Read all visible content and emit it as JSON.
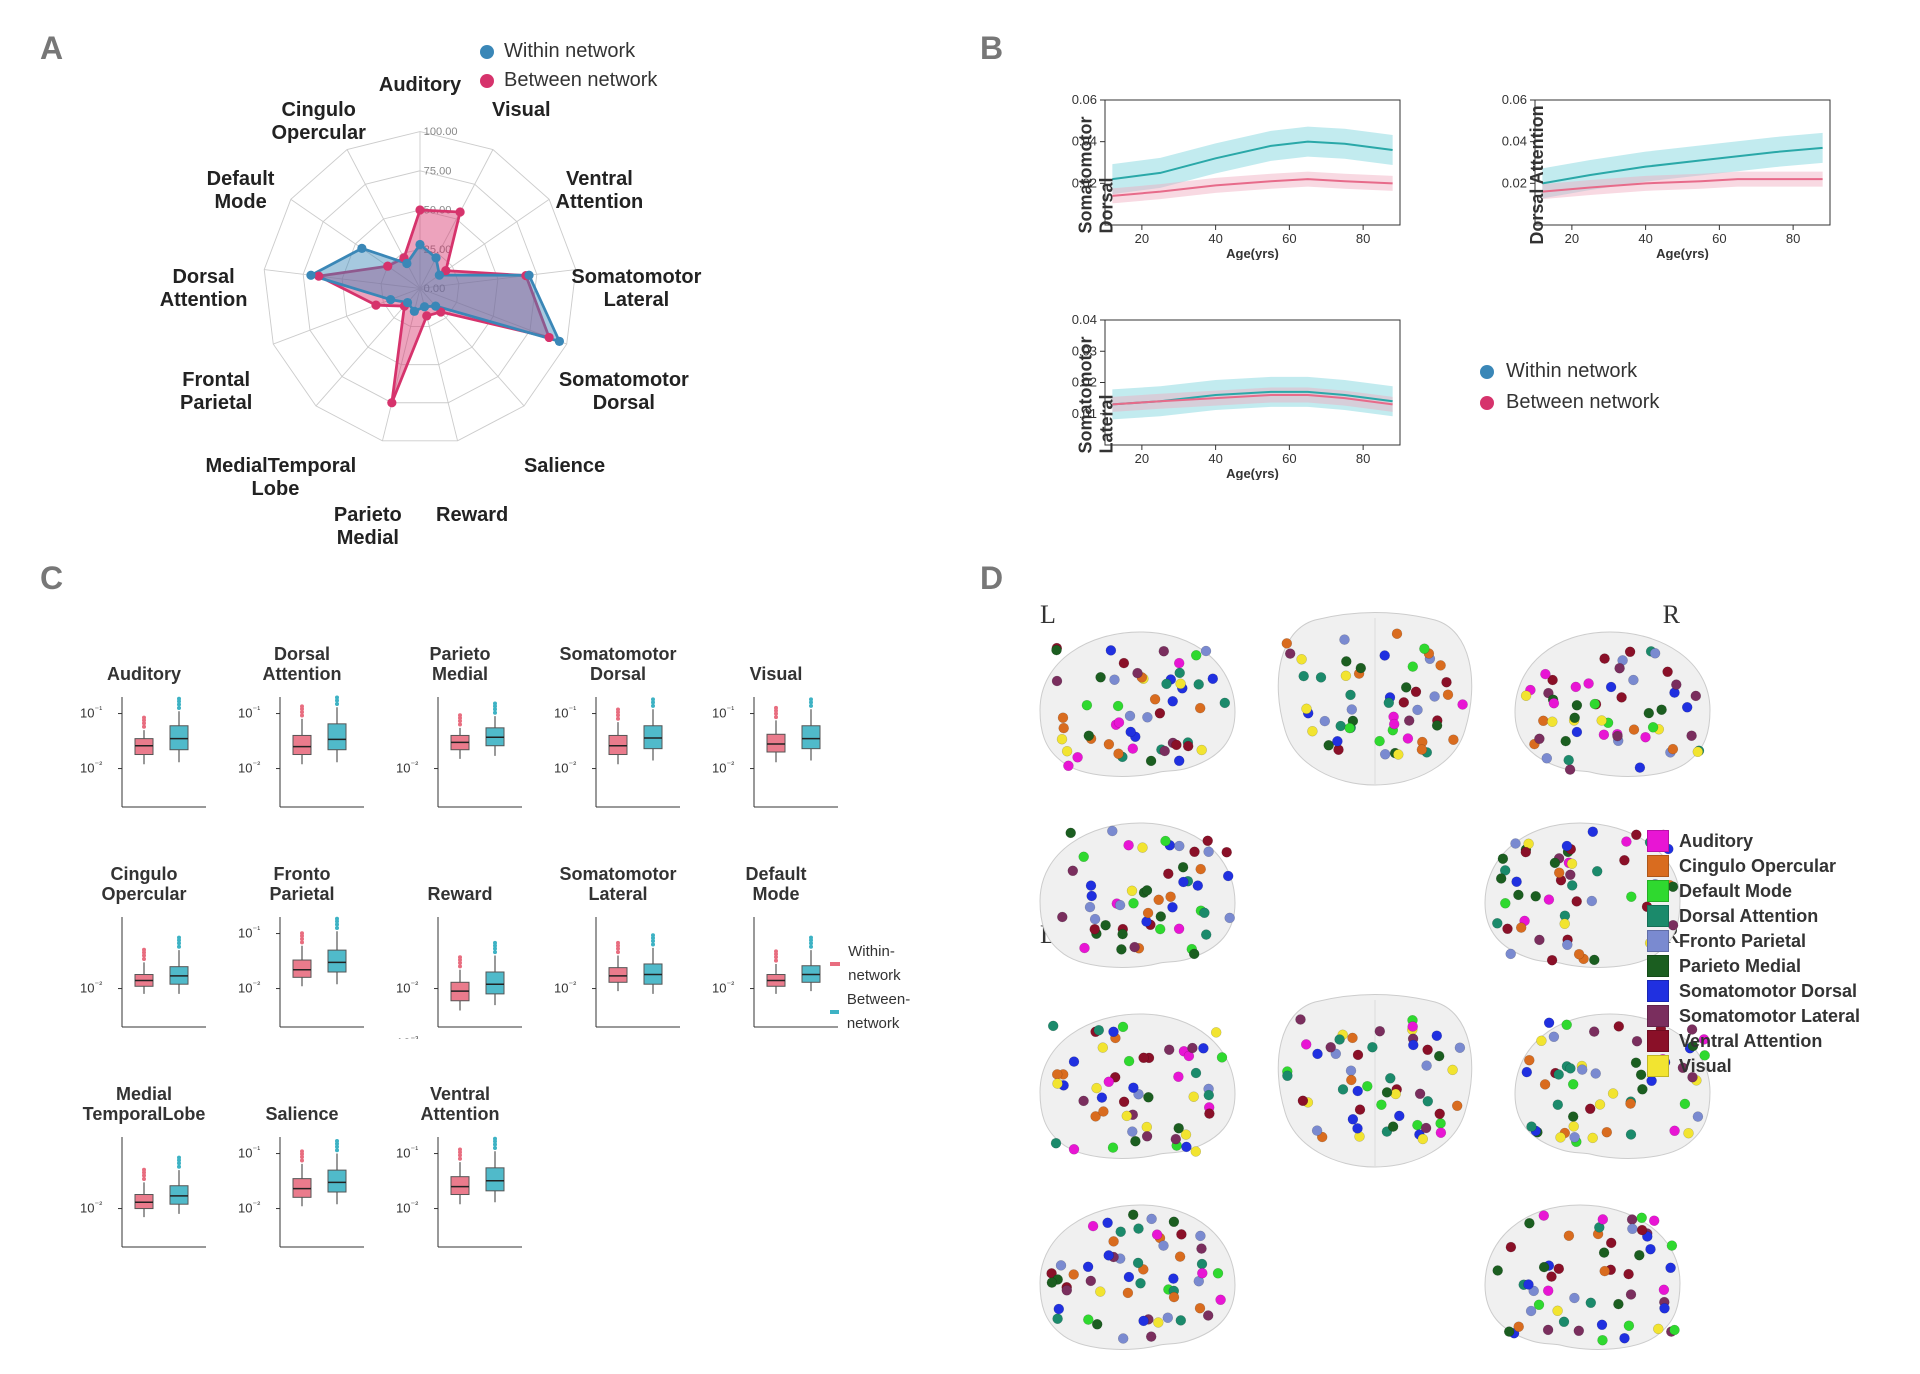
{
  "colors": {
    "within": "#3a87b7",
    "between": "#d6336c",
    "within_line": "#2aa8a8",
    "between_line": "#e76b8a",
    "within_fill": "rgba(120,210,220,0.45)",
    "between_fill": "rgba(240,170,190,0.45)",
    "box_within": "#e86d7f",
    "box_between": "#3db2c4",
    "grid": "#cccccc",
    "panel_label": "#777777"
  },
  "panelA": {
    "label": "A",
    "legend": {
      "within": "Within network",
      "between": "Between network"
    },
    "rings": [
      0,
      25,
      50,
      75,
      100
    ],
    "axes": [
      {
        "label": "Auditory",
        "within": 28,
        "between": 50
      },
      {
        "label": "Visual",
        "within": 22,
        "between": 55
      },
      {
        "label": "Ventral\nAttention",
        "within": 15,
        "between": 20
      },
      {
        "label": "Somatomotor\nLateral",
        "within": 70,
        "between": 68
      },
      {
        "label": "Somatomotor\nDorsal",
        "within": 95,
        "between": 88
      },
      {
        "label": "Salience",
        "within": 15,
        "between": 20
      },
      {
        "label": "Reward",
        "within": 12,
        "between": 18
      },
      {
        "label": "Parieto\nMedial",
        "within": 15,
        "between": 75
      },
      {
        "label": "MedialTemporal\nLobe",
        "within": 12,
        "between": 15
      },
      {
        "label": "Frontal\nParietal",
        "within": 20,
        "between": 30
      },
      {
        "label": "Dorsal\nAttention",
        "within": 70,
        "between": 65
      },
      {
        "label": "Default\nMode",
        "within": 45,
        "between": 25
      },
      {
        "label": "Cingulo\nOpercular",
        "within": 18,
        "between": 22
      }
    ]
  },
  "panelB": {
    "label": "B",
    "legend": {
      "within": "Within network",
      "between": "Between network"
    },
    "xlabel": "Age(yrs)",
    "xticks": [
      20,
      40,
      60,
      80
    ],
    "charts": [
      {
        "id": "sm_dorsal",
        "ylabel": "Somatomotor\nDorsal",
        "ylim": [
          0,
          0.06
        ],
        "yticks": [
          0.02,
          0.04,
          0.06
        ],
        "within": [
          [
            12,
            0.022
          ],
          [
            25,
            0.025
          ],
          [
            40,
            0.032
          ],
          [
            55,
            0.038
          ],
          [
            65,
            0.04
          ],
          [
            75,
            0.039
          ],
          [
            88,
            0.036
          ]
        ],
        "between": [
          [
            12,
            0.014
          ],
          [
            25,
            0.016
          ],
          [
            40,
            0.019
          ],
          [
            55,
            0.021
          ],
          [
            65,
            0.022
          ],
          [
            75,
            0.021
          ],
          [
            88,
            0.02
          ]
        ],
        "band": 0.006
      },
      {
        "id": "dorsal_attn",
        "ylabel": "Dorsal Attention",
        "ylim": [
          0,
          0.06
        ],
        "yticks": [
          0.02,
          0.04,
          0.06
        ],
        "within": [
          [
            12,
            0.02
          ],
          [
            25,
            0.024
          ],
          [
            40,
            0.028
          ],
          [
            55,
            0.031
          ],
          [
            65,
            0.033
          ],
          [
            75,
            0.035
          ],
          [
            88,
            0.037
          ]
        ],
        "between": [
          [
            12,
            0.016
          ],
          [
            25,
            0.018
          ],
          [
            40,
            0.02
          ],
          [
            55,
            0.021
          ],
          [
            65,
            0.022
          ],
          [
            75,
            0.022
          ],
          [
            88,
            0.022
          ]
        ],
        "band": 0.006
      },
      {
        "id": "sm_lateral",
        "ylabel": "Somatomotor\nLateral",
        "ylim": [
          0,
          0.04
        ],
        "yticks": [
          0.01,
          0.02,
          0.03,
          0.04
        ],
        "within": [
          [
            12,
            0.013
          ],
          [
            25,
            0.014
          ],
          [
            40,
            0.016
          ],
          [
            55,
            0.017
          ],
          [
            65,
            0.017
          ],
          [
            75,
            0.016
          ],
          [
            88,
            0.014
          ]
        ],
        "between": [
          [
            12,
            0.013
          ],
          [
            25,
            0.014
          ],
          [
            40,
            0.015
          ],
          [
            55,
            0.016
          ],
          [
            65,
            0.016
          ],
          [
            75,
            0.015
          ],
          [
            88,
            0.013
          ]
        ],
        "band": 0.004
      }
    ]
  },
  "panelC": {
    "label": "C",
    "legend": {
      "within": "Within-network",
      "between": "Between-network"
    },
    "ylabel_ticks": [
      "10",
      "10"
    ],
    "plots": [
      {
        "title": "Auditory",
        "yticks": [
          "10 ⁻¹",
          "10 ⁻²"
        ],
        "w": [
          0.012,
          0.018,
          0.026,
          0.035,
          0.05
        ],
        "b": [
          0.013,
          0.022,
          0.035,
          0.06,
          0.11
        ]
      },
      {
        "title": "Dorsal\nAttention",
        "yticks": [
          "10 ⁻¹",
          "10 ⁻²"
        ],
        "w": [
          0.012,
          0.018,
          0.025,
          0.04,
          0.08
        ],
        "b": [
          0.013,
          0.022,
          0.034,
          0.065,
          0.13
        ]
      },
      {
        "title": "Parieto\nMedial",
        "yticks": [
          "10 ⁻²"
        ],
        "w": [
          0.015,
          0.022,
          0.03,
          0.04,
          0.055
        ],
        "b": [
          0.017,
          0.026,
          0.037,
          0.055,
          0.09
        ]
      },
      {
        "title": "Somatomotor\nDorsal",
        "yticks": [
          "10 ⁻¹",
          "10 ⁻²"
        ],
        "w": [
          0.012,
          0.018,
          0.026,
          0.04,
          0.07
        ],
        "b": [
          0.014,
          0.023,
          0.036,
          0.06,
          0.12
        ]
      },
      {
        "title": "Visual",
        "yticks": [
          "10 ⁻¹",
          "10 ⁻²"
        ],
        "w": [
          0.013,
          0.02,
          0.028,
          0.042,
          0.075
        ],
        "b": [
          0.014,
          0.023,
          0.035,
          0.06,
          0.12
        ]
      },
      {
        "title": "Cingulo\nOpercular",
        "yticks": [
          "10 ⁻²"
        ],
        "w": [
          0.008,
          0.011,
          0.014,
          0.018,
          0.03
        ],
        "b": [
          0.008,
          0.012,
          0.017,
          0.025,
          0.05
        ]
      },
      {
        "title": "Fronto\nParietal",
        "yticks": [
          "10 ⁻¹",
          "10 ⁻²"
        ],
        "w": [
          0.011,
          0.016,
          0.022,
          0.033,
          0.06
        ],
        "b": [
          0.012,
          0.02,
          0.03,
          0.05,
          0.11
        ]
      },
      {
        "title": "Reward",
        "yticks": [
          "10 ⁻²",
          "10 ⁻³"
        ],
        "w": [
          0.004,
          0.006,
          0.009,
          0.013,
          0.022
        ],
        "b": [
          0.005,
          0.008,
          0.012,
          0.02,
          0.04
        ]
      },
      {
        "title": "Somatomotor\nLateral",
        "yticks": [
          "10 ⁻²"
        ],
        "w": [
          0.009,
          0.013,
          0.017,
          0.024,
          0.04
        ],
        "b": [
          0.008,
          0.012,
          0.018,
          0.028,
          0.055
        ]
      },
      {
        "title": "Default\nMode",
        "yticks": [
          "10 ⁻²"
        ],
        "w": [
          0.008,
          0.011,
          0.014,
          0.018,
          0.028
        ],
        "b": [
          0.009,
          0.013,
          0.018,
          0.026,
          0.05
        ]
      },
      {
        "title": "Medial\nTemporalLobe",
        "yticks": [
          "10 ⁻²"
        ],
        "w": [
          0.007,
          0.01,
          0.013,
          0.018,
          0.03
        ],
        "b": [
          0.008,
          0.012,
          0.017,
          0.026,
          0.05
        ]
      },
      {
        "title": "Salience",
        "yticks": [
          "10 ⁻¹",
          "10 ⁻²"
        ],
        "w": [
          0.011,
          0.016,
          0.023,
          0.035,
          0.065
        ],
        "b": [
          0.012,
          0.02,
          0.03,
          0.05,
          0.1
        ]
      },
      {
        "title": "Ventral\nAttention",
        "yticks": [
          "10 ⁻¹",
          "10 ⁻²"
        ],
        "w": [
          0.012,
          0.018,
          0.025,
          0.038,
          0.07
        ],
        "b": [
          0.013,
          0.021,
          0.032,
          0.055,
          0.11
        ]
      }
    ],
    "grid_cols": 5
  },
  "panelD": {
    "label": "D",
    "left_label": "L",
    "right_label": "R",
    "networks": [
      {
        "name": "Auditory",
        "color": "#e815d4"
      },
      {
        "name": "Cingulo Opercular",
        "color": "#d96c1f"
      },
      {
        "name": "Default Mode",
        "color": "#2fd92f"
      },
      {
        "name": "Dorsal Attention",
        "color": "#1b8a6b"
      },
      {
        "name": "Fronto Parietal",
        "color": "#7a8ad0"
      },
      {
        "name": "Parieto Medial",
        "color": "#1b5e20"
      },
      {
        "name": "Somatomotor Dorsal",
        "color": "#2030e0"
      },
      {
        "name": "Somatomotor Lateral",
        "color": "#7a2e5e"
      },
      {
        "name": "Ventral Attention",
        "color": "#8a1028"
      },
      {
        "name": "Visual",
        "color": "#f2e430"
      }
    ],
    "node_count_per_brain": 55
  }
}
